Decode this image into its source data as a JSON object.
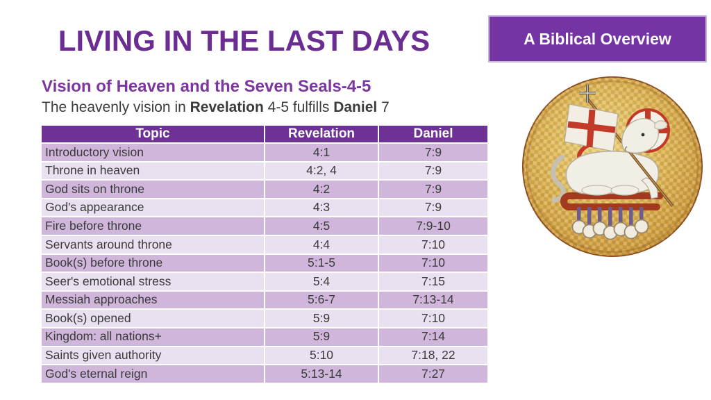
{
  "slide": {
    "title": "LIVING IN THE LAST DAYS",
    "badge": "A Biblical Overview",
    "section_heading": "Vision of Heaven and the Seven Seals-4-5",
    "description_parts": [
      {
        "text": "The heavenly vision in ",
        "bold": false
      },
      {
        "text": "Revelation",
        "bold": true
      },
      {
        "text": " 4-5 fulfills ",
        "bold": false
      },
      {
        "text": "Daniel",
        "bold": true
      },
      {
        "text": " 7",
        "bold": false
      }
    ]
  },
  "table": {
    "columns": [
      "Topic",
      "Revelation",
      "Daniel"
    ],
    "rows": [
      [
        "Introductory vision",
        "4:1",
        "7:9"
      ],
      [
        "Throne in heaven",
        "4:2, 4",
        "7:9"
      ],
      [
        "God sits on throne",
        "4:2",
        "7:9"
      ],
      [
        "God's appearance",
        "4:3",
        "7:9"
      ],
      [
        "Fire before throne",
        "4:5",
        "7:9-10"
      ],
      [
        "Servants around throne",
        "4:4",
        "7:10"
      ],
      [
        "Book(s) before throne",
        "5:1-5",
        "7:10"
      ],
      [
        "Seer's emotional stress",
        "5:4",
        "7:15"
      ],
      [
        "Messiah approaches",
        "5:6-7",
        "7:13-14"
      ],
      [
        "Book(s) opened",
        "5:9",
        "7:10"
      ],
      [
        "Kingdom: all nations+",
        "5:9",
        "7:14"
      ],
      [
        "Saints given authority",
        "5:10",
        "7:18, 22"
      ],
      [
        "God's eternal reign",
        "5:13-14",
        "7:27"
      ]
    ]
  },
  "image": {
    "name": "lamb-of-god-mosaic",
    "description": "Round gold mosaic of the Lamb of God with halo, cross banner, and seven hanging seals"
  },
  "colors": {
    "title_purple": "#6b2d92",
    "badge_purple": "#7434a4",
    "heading_purple": "#7d35a0",
    "table_header_purple": "#6e3296",
    "row_dark": "#cfb6da",
    "row_light": "#e9e0f0",
    "body_text": "#3c3c3c"
  }
}
